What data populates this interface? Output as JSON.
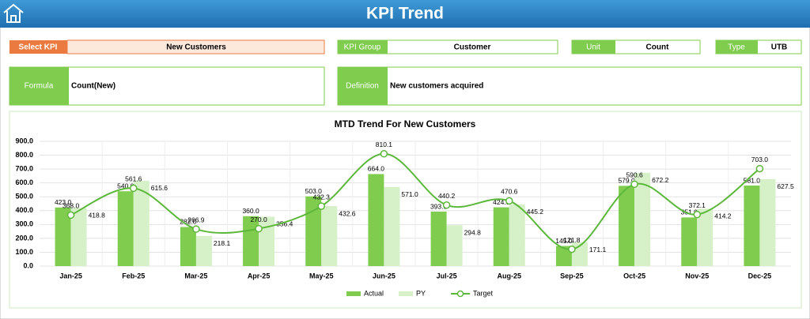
{
  "header": {
    "title": "KPI Trend"
  },
  "fields": {
    "select_kpi": {
      "label": "Select KPI",
      "value": "New Customers"
    },
    "kpi_group": {
      "label": "KPI Group",
      "value": "Customer"
    },
    "unit": {
      "label": "Unit",
      "value": "Count"
    },
    "type": {
      "label": "Type",
      "value": "UTB"
    },
    "formula": {
      "label": "Formula",
      "value": "Count(New)"
    },
    "definition": {
      "label": "Definition",
      "value": "New customers acquired"
    }
  },
  "chart_data": {
    "type": "bar-line",
    "title": "MTD Trend For New Customers",
    "categories": [
      "Jan-25",
      "Feb-25",
      "Mar-25",
      "Apr-25",
      "May-25",
      "Jun-25",
      "Jul-25",
      "Aug-25",
      "Sep-25",
      "Oct-25",
      "Nov-25",
      "Dec-25"
    ],
    "series": [
      {
        "name": "Actual",
        "color": "#7fcc4f",
        "kind": "bar",
        "values": [
          423,
          540,
          282,
          360,
          503,
          664,
          393,
          424,
          145,
          579,
          351,
          581
        ],
        "value_labels": [
          "423.0",
          "540.0",
          "282.0",
          "360.0",
          "503.0",
          "664.0",
          "393.0",
          "424.0",
          "145.0",
          "579.0",
          "351.0",
          "581.0"
        ]
      },
      {
        "name": "PY",
        "color": "#d6f0c8",
        "kind": "bar",
        "values": [
          418.8,
          615.6,
          218.1,
          356.4,
          432.6,
          571,
          294.8,
          445.2,
          171.1,
          672.2,
          414.2,
          627.5
        ],
        "value_labels": [
          "418.8",
          "615.6",
          "218.1",
          "356.4",
          "432.6",
          "571.0",
          "294.8",
          "445.2",
          "171.1",
          "672.2",
          "414.2",
          "627.5"
        ]
      },
      {
        "name": "Target",
        "color": "#5cb83a",
        "kind": "line",
        "values": [
          368,
          561.6,
          266.9,
          270,
          432.3,
          810.1,
          440.2,
          470.6,
          121.8,
          590.6,
          372.1,
          703
        ],
        "value_labels": [
          "368.0",
          "561.6",
          "266.9",
          "270.0",
          "432.3",
          "810.1",
          "440.2",
          "470.6",
          "121.8",
          "590.6",
          "372.1",
          "703.0"
        ]
      }
    ],
    "ylim": [
      0,
      900
    ],
    "yticks": [
      {
        "value": 0,
        "label": "0.0"
      },
      {
        "value": 100,
        "label": "100.0"
      },
      {
        "value": 200,
        "label": "200.0"
      },
      {
        "value": 300,
        "label": "300.0"
      },
      {
        "value": 400,
        "label": "400.0"
      },
      {
        "value": 500,
        "label": "500.0"
      },
      {
        "value": 600,
        "label": "600.0"
      },
      {
        "value": 700,
        "label": "700.0"
      },
      {
        "value": 800,
        "label": "800.0"
      },
      {
        "value": 900,
        "label": "900.0"
      }
    ],
    "grid": true,
    "legend": "bottom"
  }
}
